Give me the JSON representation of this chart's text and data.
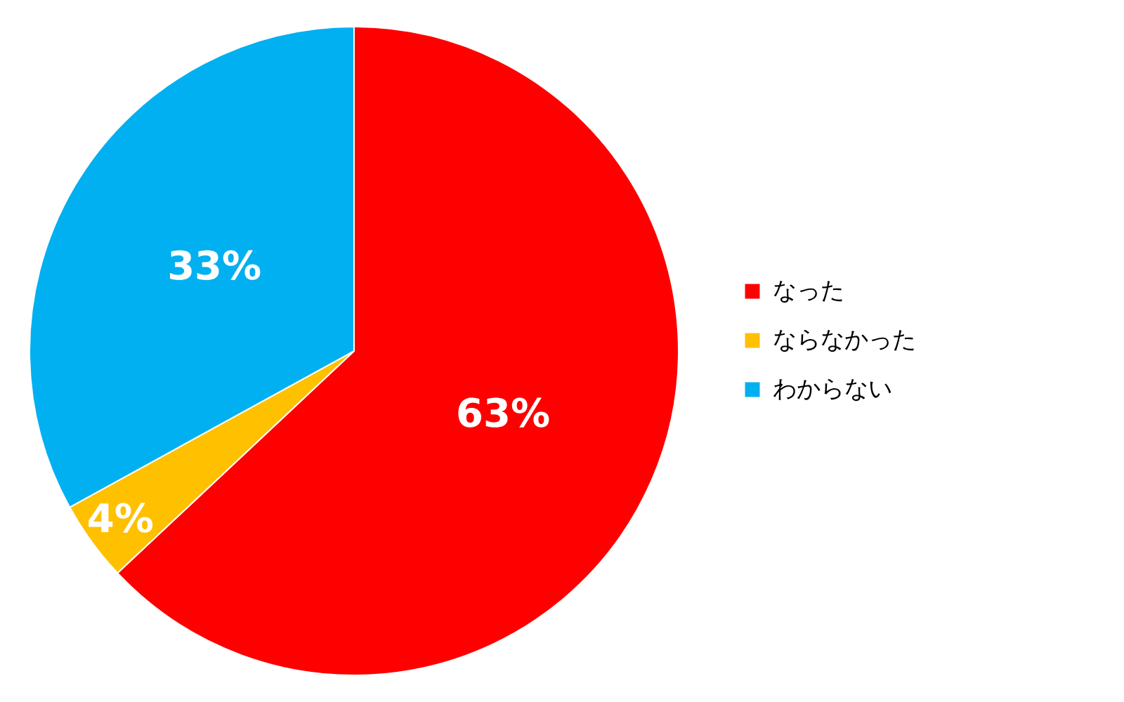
{
  "chart_data": {
    "type": "pie",
    "categories": [
      "なった",
      "ならなかった",
      "わからない"
    ],
    "values": [
      63,
      4,
      33
    ],
    "colors": [
      "#ff0000",
      "#ffc000",
      "#00b0f0"
    ],
    "value_labels": [
      "63%",
      "4%",
      "33%"
    ],
    "legend": "right"
  }
}
